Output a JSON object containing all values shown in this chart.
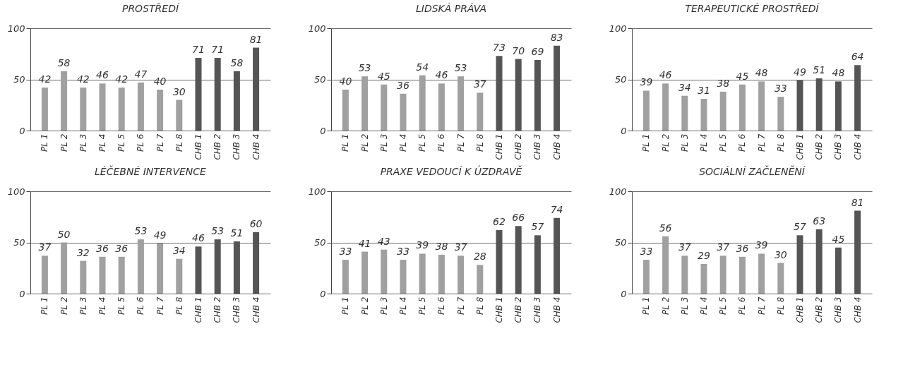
{
  "chart_data": [
    {
      "type": "bar",
      "title": "PROSTŘEDÍ",
      "categories": [
        "PL 1",
        "PL 2",
        "PL 3",
        "PL 4",
        "PL 5",
        "PL 6",
        "PL 7",
        "PL 8",
        "CHB 1",
        "CHB 2",
        "CHB 3",
        "CHB 4"
      ],
      "values": [
        42,
        58,
        42,
        46,
        42,
        47,
        40,
        30,
        71,
        71,
        58,
        81
      ],
      "colors": [
        "#a0a0a0",
        "#a0a0a0",
        "#a0a0a0",
        "#a0a0a0",
        "#a0a0a0",
        "#a0a0a0",
        "#a0a0a0",
        "#a0a0a0",
        "#555555",
        "#555555",
        "#555555",
        "#555555"
      ],
      "ylim": [
        0,
        100
      ],
      "yticks": [
        0,
        50,
        100
      ],
      "grid": "y",
      "data_labels": true
    },
    {
      "type": "bar",
      "title": "LIDSKÁ PRÁVA",
      "categories": [
        "PL 1",
        "PL 2",
        "PL 3",
        "PL 4",
        "PL 5",
        "PL 6",
        "PL 7",
        "PL 8",
        "CHB 1",
        "CHB 2",
        "CHB 3",
        "CHB 4"
      ],
      "values": [
        40,
        53,
        45,
        36,
        54,
        46,
        53,
        37,
        73,
        70,
        69,
        83
      ],
      "colors": [
        "#a0a0a0",
        "#a0a0a0",
        "#a0a0a0",
        "#a0a0a0",
        "#a0a0a0",
        "#a0a0a0",
        "#a0a0a0",
        "#a0a0a0",
        "#555555",
        "#555555",
        "#555555",
        "#555555"
      ],
      "ylim": [
        0,
        100
      ],
      "yticks": [
        0,
        50,
        100
      ],
      "grid": "y",
      "data_labels": true
    },
    {
      "type": "bar",
      "title": "TERAPEUTICKÉ PROSTŘEDÍ",
      "categories": [
        "PL 1",
        "PL 2",
        "PL 3",
        "PL 4",
        "PL 5",
        "PL 6",
        "PL 7",
        "PL 8",
        "CHB 1",
        "CHB 2",
        "CHB 3",
        "CHB 4"
      ],
      "values": [
        39,
        46,
        34,
        31,
        38,
        45,
        48,
        33,
        49,
        51,
        48,
        64
      ],
      "colors": [
        "#a0a0a0",
        "#a0a0a0",
        "#a0a0a0",
        "#a0a0a0",
        "#a0a0a0",
        "#a0a0a0",
        "#a0a0a0",
        "#a0a0a0",
        "#555555",
        "#555555",
        "#555555",
        "#555555"
      ],
      "ylim": [
        0,
        100
      ],
      "yticks": [
        0,
        50,
        100
      ],
      "grid": "y",
      "data_labels": true
    },
    {
      "type": "bar",
      "title": "LÉČEBNÉ INTERVENCE",
      "categories": [
        "PL 1",
        "PL 2",
        "PL 3",
        "PL 4",
        "PL 5",
        "PL 6",
        "PL 7",
        "PL 8",
        "CHB 1",
        "CHB 2",
        "CHB 3",
        "CHB 4"
      ],
      "values": [
        37,
        50,
        32,
        36,
        36,
        53,
        49,
        34,
        46,
        53,
        51,
        60
      ],
      "colors": [
        "#a0a0a0",
        "#a0a0a0",
        "#a0a0a0",
        "#a0a0a0",
        "#a0a0a0",
        "#a0a0a0",
        "#a0a0a0",
        "#a0a0a0",
        "#555555",
        "#555555",
        "#555555",
        "#555555"
      ],
      "ylim": [
        0,
        100
      ],
      "yticks": [
        0,
        50,
        100
      ],
      "grid": "y",
      "data_labels": true
    },
    {
      "type": "bar",
      "title": "PRAXE VEDOUCÍ K ÚZDRAVĚ",
      "categories": [
        "PL 1",
        "PL 2",
        "PL 3",
        "PL 4",
        "PL 5",
        "PL 6",
        "PL 7",
        "PL 8",
        "CHB 1",
        "CHB 2",
        "CHB 3",
        "CHB 4"
      ],
      "values": [
        33,
        41,
        43,
        33,
        39,
        38,
        37,
        28,
        62,
        66,
        57,
        74
      ],
      "colors": [
        "#a0a0a0",
        "#a0a0a0",
        "#a0a0a0",
        "#a0a0a0",
        "#a0a0a0",
        "#a0a0a0",
        "#a0a0a0",
        "#a0a0a0",
        "#555555",
        "#555555",
        "#555555",
        "#555555"
      ],
      "ylim": [
        0,
        100
      ],
      "yticks": [
        0,
        50,
        100
      ],
      "grid": "y",
      "data_labels": true
    },
    {
      "type": "bar",
      "title": "SOCIÁLNÍ ZAČLENĚNÍ",
      "categories": [
        "PL 1",
        "PL 2",
        "PL 3",
        "PL 4",
        "PL 5",
        "PL 6",
        "PL 7",
        "PL 8",
        "CHB 1",
        "CHB 2",
        "CHB 3",
        "CHB 4"
      ],
      "values": [
        33,
        56,
        37,
        29,
        37,
        36,
        39,
        30,
        57,
        63,
        45,
        81
      ],
      "colors": [
        "#a0a0a0",
        "#a0a0a0",
        "#a0a0a0",
        "#a0a0a0",
        "#a0a0a0",
        "#a0a0a0",
        "#a0a0a0",
        "#a0a0a0",
        "#555555",
        "#555555",
        "#555555",
        "#555555"
      ],
      "ylim": [
        0,
        100
      ],
      "yticks": [
        0,
        50,
        100
      ],
      "grid": "y",
      "data_labels": true
    }
  ]
}
